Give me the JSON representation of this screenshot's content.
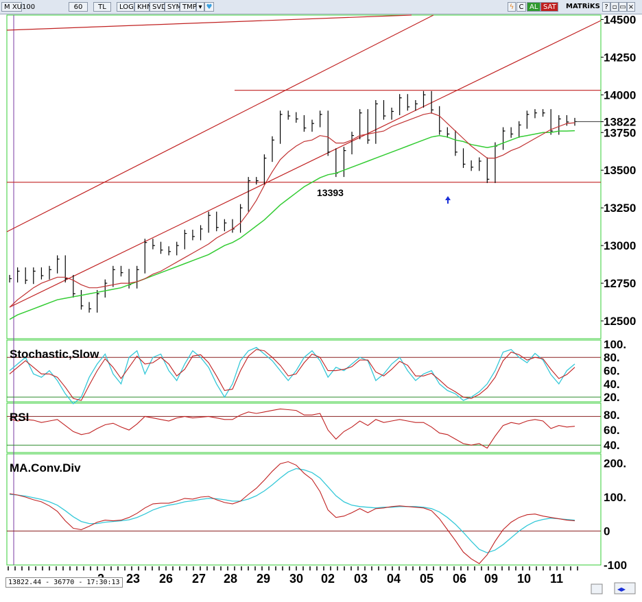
{
  "toolbar": {
    "symbol_prefix": "M",
    "symbol": "XU100",
    "period": "60",
    "currency": "TL",
    "btn_log": "LOG",
    "btn_khn": "KHN",
    "btn_svd": "SVD",
    "btn_sym": "SYM",
    "btn_tmp": "TMP",
    "btn_c": "C",
    "btn_al": "AL",
    "btn_sat": "SAT",
    "brand": "MATRiKS"
  },
  "footer": {
    "readout": "13822.44 - 36770 - 17:30:13"
  },
  "colors": {
    "price": "#000000",
    "ma_short": "#c03030",
    "ma_long": "#33cc33",
    "stoch_k": "#33c8d8",
    "stoch_d": "#c02020",
    "rsi": "#c02020",
    "macd": "#c02020",
    "signal": "#33c8d8",
    "levels": "#c02020",
    "accent_arrow": "#1a2fd8"
  },
  "chart_data": {
    "type": "line",
    "x_labels": [
      "2",
      "23",
      "26",
      "27",
      "28",
      "29",
      "30",
      "02",
      "03",
      "04",
      "05",
      "06",
      "09",
      "10",
      "11"
    ],
    "price_panel": {
      "y_ticks": [
        "14500",
        "14250",
        "14000",
        "13822",
        "13750",
        "13500",
        "13250",
        "13000",
        "12750",
        "12500"
      ],
      "y_tick_values": [
        14500,
        14250,
        14000,
        13822,
        13750,
        13500,
        13250,
        13000,
        12750,
        12500
      ],
      "ylim": [
        12400,
        14520
      ],
      "last_price": 13822,
      "annotation": "13393",
      "horizontal_levels": [
        14030,
        13420,
        14440
      ],
      "close": [
        12780,
        12830,
        12770,
        12830,
        12800,
        12840,
        12910,
        12780,
        12680,
        12600,
        12580,
        12680,
        12750,
        12840,
        12820,
        12740,
        12840,
        13020,
        13000,
        12970,
        12960,
        13000,
        13080,
        13060,
        13110,
        13200,
        13120,
        13150,
        13110,
        13250,
        13430,
        13430,
        13580,
        13700,
        13870,
        13860,
        13840,
        13780,
        13810,
        13870,
        13620,
        13480,
        13630,
        13730,
        13880,
        13700,
        13940,
        13860,
        13890,
        13980,
        13920,
        13940,
        14000,
        13900,
        13760,
        13740,
        13620,
        13540,
        13520,
        13560,
        13440,
        13660,
        13760,
        13740,
        13800,
        13870,
        13880,
        13880,
        13760,
        13840,
        13820,
        13822
      ],
      "ma_short": [
        12590,
        12640,
        12680,
        12720,
        12750,
        12770,
        12790,
        12790,
        12770,
        12740,
        12720,
        12720,
        12730,
        12740,
        12750,
        12750,
        12760,
        12780,
        12810,
        12830,
        12860,
        12890,
        12920,
        12950,
        12980,
        13010,
        13050,
        13080,
        13110,
        13150,
        13220,
        13300,
        13400,
        13490,
        13570,
        13620,
        13660,
        13690,
        13700,
        13730,
        13720,
        13680,
        13680,
        13700,
        13730,
        13740,
        13750,
        13760,
        13790,
        13810,
        13830,
        13850,
        13870,
        13880,
        13860,
        13810,
        13760,
        13710,
        13660,
        13620,
        13580,
        13580,
        13600,
        13630,
        13650,
        13680,
        13710,
        13740,
        13770,
        13790,
        13810,
        13815
      ],
      "ma_long": [
        12510,
        12540,
        12560,
        12580,
        12600,
        12620,
        12640,
        12650,
        12660,
        12670,
        12680,
        12690,
        12700,
        12710,
        12720,
        12740,
        12760,
        12780,
        12800,
        12820,
        12840,
        12860,
        12880,
        12900,
        12920,
        12940,
        12970,
        13000,
        13020,
        13050,
        13090,
        13130,
        13170,
        13220,
        13270,
        13310,
        13350,
        13390,
        13420,
        13450,
        13470,
        13480,
        13500,
        13520,
        13540,
        13560,
        13580,
        13600,
        13620,
        13640,
        13660,
        13680,
        13700,
        13720,
        13730,
        13720,
        13700,
        13690,
        13670,
        13660,
        13650,
        13660,
        13680,
        13700,
        13720,
        13730,
        13740,
        13750,
        13750,
        13760,
        13760,
        13762
      ]
    },
    "stochastic": {
      "title": "Stochastic,Slow",
      "y_ticks": [
        "100.",
        "80.",
        "60.",
        "40.",
        "20."
      ],
      "y_tick_values": [
        100,
        80,
        60,
        40,
        20
      ],
      "levels": [
        80,
        20
      ],
      "ylim": [
        15,
        102
      ],
      "k": [
        60,
        70,
        80,
        55,
        50,
        60,
        45,
        25,
        10,
        20,
        50,
        70,
        85,
        55,
        40,
        80,
        90,
        55,
        80,
        85,
        60,
        45,
        70,
        90,
        80,
        65,
        40,
        20,
        40,
        75,
        90,
        95,
        85,
        75,
        60,
        45,
        60,
        80,
        90,
        75,
        50,
        65,
        60,
        70,
        80,
        75,
        45,
        55,
        70,
        80,
        60,
        45,
        55,
        60,
        40,
        30,
        25,
        15,
        20,
        28,
        40,
        60,
        88,
        92,
        80,
        72,
        86,
        76,
        54,
        40,
        60,
        70
      ],
      "d": [
        55,
        65,
        75,
        65,
        55,
        55,
        50,
        35,
        18,
        15,
        38,
        60,
        78,
        65,
        48,
        65,
        82,
        70,
        72,
        80,
        70,
        52,
        62,
        82,
        84,
        72,
        52,
        30,
        32,
        60,
        82,
        92,
        90,
        80,
        68,
        52,
        55,
        72,
        85,
        80,
        60,
        60,
        62,
        66,
        76,
        76,
        58,
        52,
        62,
        74,
        68,
        52,
        52,
        56,
        46,
        35,
        28,
        20,
        18,
        24,
        34,
        50,
        75,
        88,
        84,
        76,
        80,
        78,
        62,
        48,
        54,
        65
      ]
    },
    "rsi": {
      "title": "RSI",
      "y_ticks": [
        "80.",
        "60.",
        "40."
      ],
      "y_tick_values": [
        80,
        60,
        40
      ],
      "levels": [
        78,
        40
      ],
      "ylim": [
        32,
        92
      ],
      "values": [
        75,
        72,
        74,
        73,
        70,
        72,
        74,
        66,
        58,
        54,
        56,
        62,
        67,
        69,
        64,
        60,
        68,
        78,
        76,
        74,
        72,
        76,
        78,
        76,
        77,
        78,
        76,
        74,
        74,
        80,
        84,
        82,
        84,
        86,
        88,
        87,
        86,
        80,
        80,
        82,
        60,
        48,
        58,
        64,
        72,
        66,
        74,
        70,
        72,
        74,
        72,
        70,
        70,
        64,
        56,
        54,
        48,
        42,
        40,
        42,
        36,
        52,
        66,
        70,
        68,
        72,
        74,
        72,
        62,
        66,
        64,
        65
      ]
    },
    "macd": {
      "title": "MA.Conv.Div",
      "y_ticks": [
        "200.",
        "100.",
        "0",
        "-100"
      ],
      "y_tick_values": [
        200,
        100,
        0,
        -100
      ],
      "level": 0,
      "ylim": [
        -100,
        215
      ],
      "macd": [
        110,
        106,
        100,
        92,
        86,
        74,
        58,
        30,
        8,
        4,
        14,
        26,
        32,
        30,
        32,
        40,
        52,
        68,
        80,
        82,
        82,
        88,
        96,
        94,
        100,
        102,
        92,
        84,
        80,
        88,
        108,
        126,
        150,
        176,
        198,
        204,
        194,
        170,
        152,
        116,
        62,
        40,
        44,
        54,
        66,
        54,
        66,
        68,
        72,
        74,
        72,
        70,
        68,
        60,
        36,
        4,
        -28,
        -62,
        -82,
        -96,
        -70,
        -30,
        4,
        26,
        40,
        48,
        50,
        44,
        40,
        36,
        32,
        30
      ],
      "signal": [
        108,
        106,
        103,
        98,
        93,
        86,
        76,
        60,
        42,
        28,
        22,
        22,
        26,
        28,
        30,
        33,
        40,
        50,
        62,
        70,
        76,
        80,
        86,
        89,
        93,
        96,
        95,
        92,
        88,
        88,
        94,
        104,
        118,
        136,
        156,
        174,
        184,
        180,
        172,
        156,
        130,
        104,
        86,
        76,
        72,
        70,
        68,
        70,
        70,
        72,
        72,
        72,
        70,
        66,
        56,
        40,
        20,
        -4,
        -30,
        -54,
        -64,
        -56,
        -40,
        -20,
        0,
        16,
        28,
        34,
        38,
        36,
        34,
        32
      ]
    }
  }
}
